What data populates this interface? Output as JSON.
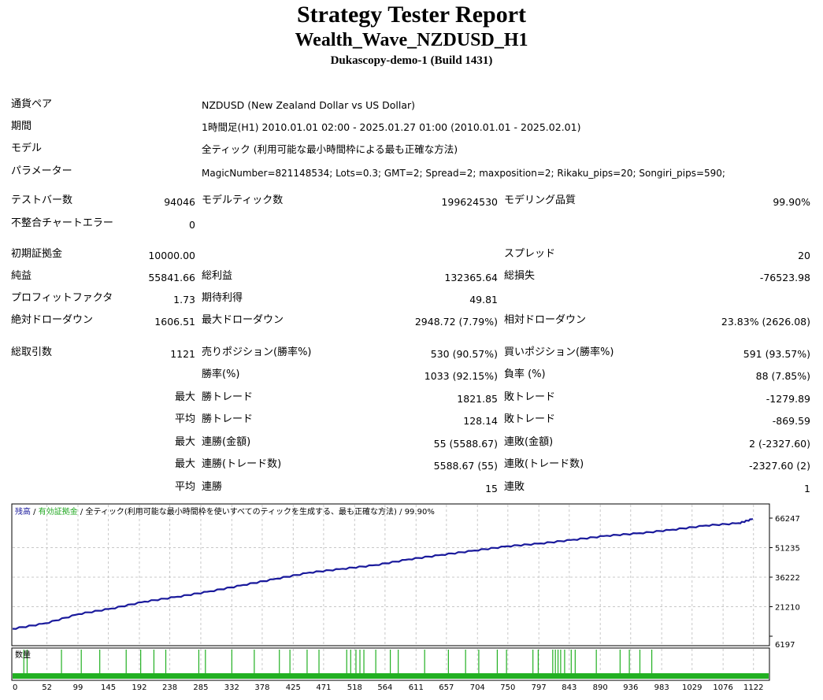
{
  "header": {
    "title": "Strategy Tester Report",
    "subtitle": "Wealth_Wave_NZDUSD_H1",
    "build": "Dukascopy-demo-1 (Build 1431)"
  },
  "info": {
    "pair_label": "通貨ペア",
    "pair_value": "NZDUSD (New Zealand Dollar vs US Dollar)",
    "period_label": "期間",
    "period_value": "1時間足(H1) 2010.01.01 02:00 - 2025.01.27 01:00 (2010.01.01 - 2025.02.01)",
    "model_label": "モデル",
    "model_value": "全ティック (利用可能な最小時間枠による最も正確な方法)",
    "params_label": "パラメーター",
    "params_value": "MagicNumber=821148534; Lots=0.3; GMT=2; Spread=2; maxposition=2; Rikaku_pips=20; Songiri_pips=590;"
  },
  "stats": {
    "bars_label": "テストバー数",
    "bars_value": "94046",
    "ticks_label": "モデルティック数",
    "ticks_value": "199624530",
    "quality_label": "モデリング品質",
    "quality_value": "99.90%",
    "mismatch_label": "不整合チャートエラー",
    "mismatch_value": "0",
    "deposit_label": "初期証拠金",
    "deposit_value": "10000.00",
    "spread_label": "スプレッド",
    "spread_value": "20",
    "net_label": "純益",
    "net_value": "55841.66",
    "gross_profit_label": "総利益",
    "gross_profit_value": "132365.64",
    "gross_loss_label": "総損失",
    "gross_loss_value": "-76523.98",
    "pf_label": "プロフィットファクタ",
    "pf_value": "1.73",
    "expected_label": "期待利得",
    "expected_value": "49.81",
    "abs_dd_label": "絶対ドローダウン",
    "abs_dd_value": "1606.51",
    "max_dd_label": "最大ドローダウン",
    "max_dd_value": "2948.72 (7.79%)",
    "rel_dd_label": "相対ドローダウン",
    "rel_dd_value": "23.83% (2626.08)",
    "total_trades_label": "総取引数",
    "total_trades_value": "1121",
    "short_label": "売りポジション(勝率%)",
    "short_value": "530 (90.57%)",
    "long_label": "買いポジション(勝率%)",
    "long_value": "591 (93.57%)",
    "winrate_label": "勝率(%)",
    "winrate_value": "1033 (92.15%)",
    "lossrate_label": "負率 (%)",
    "lossrate_value": "88 (7.85%)",
    "max_label": "最大",
    "avg_label": "平均",
    "win_trade_label": "勝トレード",
    "loss_trade_label": "敗トレード",
    "max_win_value": "1821.85",
    "max_loss_value": "-1279.89",
    "avg_win_value": "128.14",
    "avg_loss_value": "-869.59",
    "consec_win_money_label": "連勝(金額)",
    "consec_win_money_value": "55 (5588.67)",
    "consec_loss_money_label": "連敗(金額)",
    "consec_loss_money_value": "2 (-2327.60)",
    "consec_win_count_label": "連勝(トレード数)",
    "consec_win_count_value": "5588.67 (55)",
    "consec_loss_count_label": "連敗(トレード数)",
    "consec_loss_count_value": "-2327.60 (2)",
    "avg_consec_win_label": "連勝",
    "avg_consec_win_value": "15",
    "avg_consec_loss_label": "連敗",
    "avg_consec_loss_value": "1"
  },
  "chart_data": {
    "type": "line",
    "legend": {
      "balance": "残高",
      "sep": " / ",
      "equity": "有効証拠金",
      "model": " / 全ティック(利用可能な最小時間枠を使いすべてのティックを生成する、最も正確な方法) / 99.90%"
    },
    "volume_label": "数量",
    "ylim": [
      6197,
      66247
    ],
    "y_ticks": [
      "66247",
      "51235",
      "36222",
      "21210",
      "6197"
    ],
    "x_ticks": [
      0,
      52,
      99,
      145,
      192,
      238,
      285,
      332,
      378,
      425,
      471,
      518,
      564,
      611,
      657,
      704,
      750,
      797,
      843,
      890,
      936,
      983,
      1029,
      1076,
      1122
    ],
    "xlim": [
      0,
      1145
    ],
    "balance_points": [
      [
        0,
        10000
      ],
      [
        50,
        12800
      ],
      [
        100,
        17500
      ],
      [
        150,
        20300
      ],
      [
        200,
        23800
      ],
      [
        250,
        26300
      ],
      [
        300,
        29100
      ],
      [
        350,
        32300
      ],
      [
        400,
        35500
      ],
      [
        450,
        38600
      ],
      [
        500,
        40500
      ],
      [
        550,
        42400
      ],
      [
        600,
        45300
      ],
      [
        650,
        47600
      ],
      [
        700,
        49800
      ],
      [
        750,
        52000
      ],
      [
        800,
        53400
      ],
      [
        850,
        55300
      ],
      [
        900,
        57300
      ],
      [
        950,
        58600
      ],
      [
        1000,
        60400
      ],
      [
        1050,
        62500
      ],
      [
        1100,
        63700
      ],
      [
        1121,
        65841
      ]
    ],
    "volume_spikes": [
      17,
      22,
      74,
      104,
      132,
      172,
      194,
      214,
      232,
      282,
      292,
      332,
      366,
      404,
      420,
      446,
      464,
      506,
      512,
      520,
      526,
      532,
      550,
      572,
      584,
      624,
      660,
      686,
      706,
      734,
      748,
      788,
      796,
      818,
      822,
      826,
      830,
      836,
      846,
      852,
      884,
      920,
      934,
      950,
      968
    ]
  }
}
